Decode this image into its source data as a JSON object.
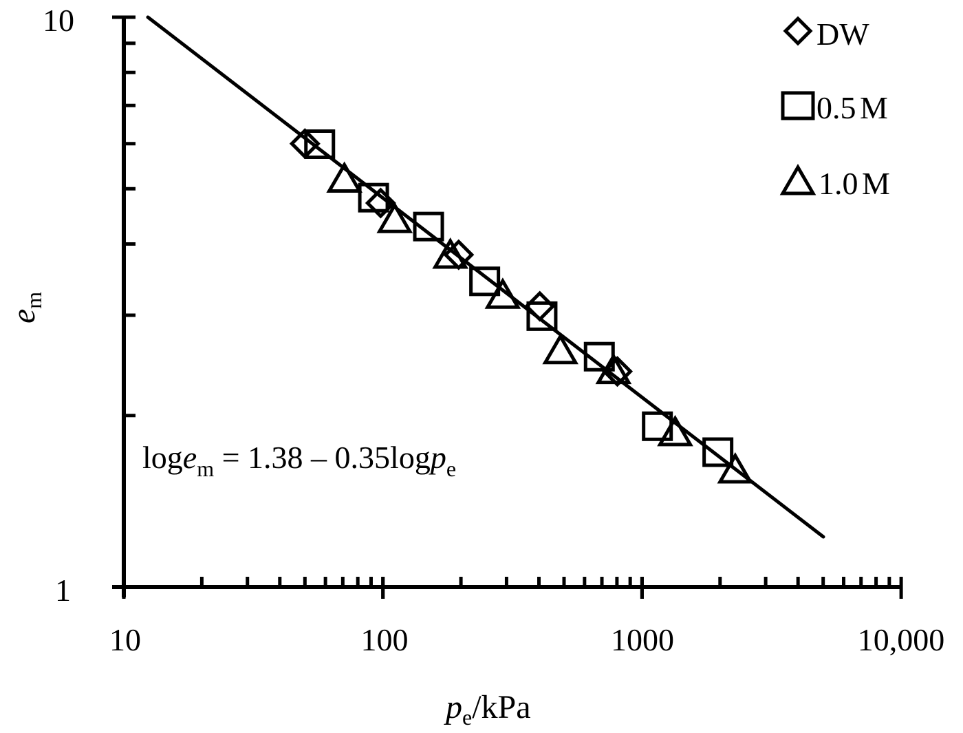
{
  "chart_data": {
    "type": "scatter",
    "title": "",
    "xlabel": "p_e/kPa",
    "ylabel": "e_m",
    "xscale": "log",
    "yscale": "log",
    "xlim": [
      10,
      10000
    ],
    "ylim": [
      1,
      10
    ],
    "x_ticks": [
      "10",
      "100",
      "1000",
      "10,000"
    ],
    "y_ticks": [
      "1",
      "10"
    ],
    "grid": false,
    "legend_position": "top-right",
    "series": [
      {
        "name": "DW",
        "marker": "diamond",
        "points": [
          [
            50,
            6.0
          ],
          [
            98,
            4.72
          ],
          [
            196,
            3.83
          ],
          [
            403,
            3.11
          ],
          [
            803,
            2.39
          ]
        ]
      },
      {
        "name": "0.5 M",
        "marker": "square",
        "points": [
          [
            57,
            5.97
          ],
          [
            92,
            4.81
          ],
          [
            150,
            4.28
          ],
          [
            247,
            3.43
          ],
          [
            411,
            2.98
          ],
          [
            684,
            2.53
          ],
          [
            1146,
            1.91
          ],
          [
            1962,
            1.72
          ]
        ]
      },
      {
        "name": "1.0 M",
        "marker": "triangle",
        "points": [
          [
            71,
            5.18
          ],
          [
            111,
            4.4
          ],
          [
            182,
            3.81
          ],
          [
            290,
            3.24
          ],
          [
            484,
            2.59
          ],
          [
            776,
            2.39
          ],
          [
            1342,
            1.86
          ],
          [
            2289,
            1.6
          ]
        ]
      }
    ],
    "fit_line": {
      "equation": "loge_m = 1.38 - 0.35logp_e",
      "intercept": 1.38,
      "slope": -0.35,
      "x_range": [
        12,
        5000
      ]
    }
  },
  "axes": {
    "x_ticks": [
      "10",
      "100",
      "1000",
      "10,000"
    ],
    "y_ticks": [
      "10",
      "1"
    ],
    "xlabel_main": "p",
    "xlabel_sub": "e",
    "xlabel_unit": "/kPa",
    "ylabel_main": "e",
    "ylabel_sub": "m"
  },
  "legend": {
    "items": [
      {
        "label": "DW",
        "marker": "diamond"
      },
      {
        "label": "0.5 M",
        "marker": "square"
      },
      {
        "label": "1.0 M",
        "marker": "triangle"
      }
    ]
  },
  "equation": {
    "part1": "log",
    "var1": "e",
    "sub1": "m",
    "part2": " = 1.38 – 0.35log",
    "var2": "p",
    "sub2": "e"
  }
}
